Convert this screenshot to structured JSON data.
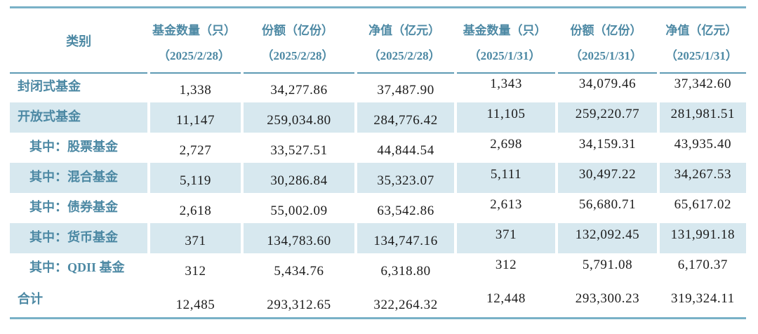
{
  "table": {
    "category_header": "类别",
    "columns": [
      {
        "title": "基金数量（只）",
        "date": "（2025/2/28）"
      },
      {
        "title": "份额（亿份）",
        "date": "（2025/2/28）"
      },
      {
        "title": "净值（亿元）",
        "date": "（2025/2/28）"
      },
      {
        "title": "基金数量（只）",
        "date": "（2025/1/31）"
      },
      {
        "title": "份额（亿份）",
        "date": "（2025/1/31）"
      },
      {
        "title": "净值（亿元）",
        "date": "（2025/1/31）"
      }
    ],
    "rows": [
      {
        "label": "封闭式基金",
        "indent": false,
        "striped": false,
        "total": false,
        "values": [
          "1,338",
          "34,277.86",
          "37,487.90",
          "1,343",
          "34,079.46",
          "37,342.60"
        ]
      },
      {
        "label": "开放式基金",
        "indent": false,
        "striped": true,
        "total": false,
        "values": [
          "11,147",
          "259,034.80",
          "284,776.42",
          "11,105",
          "259,220.77",
          "281,981.51"
        ]
      },
      {
        "label": "其中：股票基金",
        "indent": true,
        "striped": false,
        "total": false,
        "values": [
          "2,727",
          "33,527.51",
          "44,844.54",
          "2,698",
          "34,159.31",
          "43,935.40"
        ]
      },
      {
        "label": "其中：混合基金",
        "indent": true,
        "striped": true,
        "total": false,
        "values": [
          "5,119",
          "30,286.84",
          "35,323.07",
          "5,111",
          "30,497.22",
          "34,267.53"
        ]
      },
      {
        "label": "其中：债券基金",
        "indent": true,
        "striped": false,
        "total": false,
        "values": [
          "2,618",
          "55,002.09",
          "63,542.86",
          "2,613",
          "56,680.71",
          "65,617.02"
        ]
      },
      {
        "label": "其中：货币基金",
        "indent": true,
        "striped": true,
        "total": false,
        "values": [
          "371",
          "134,783.60",
          "134,747.16",
          "371",
          "132,092.45",
          "131,991.18"
        ]
      },
      {
        "label": "其中：QDII 基金",
        "indent": true,
        "striped": false,
        "total": false,
        "values": [
          "312",
          "5,434.76",
          "6,318.80",
          "312",
          "5,791.08",
          "6,170.37"
        ]
      },
      {
        "label": "合计",
        "indent": false,
        "striped": false,
        "total": true,
        "values": [
          "12,485",
          "293,312.65",
          "322,264.32",
          "12,448",
          "293,300.23",
          "319,324.11"
        ]
      }
    ]
  },
  "colors": {
    "accent_text": "#4d89a4",
    "stripe_background": "#d7e8ef",
    "border_line": "#79b1c7",
    "header_separator": "#5e9ab4",
    "number_text": "#1c1c1c"
  }
}
